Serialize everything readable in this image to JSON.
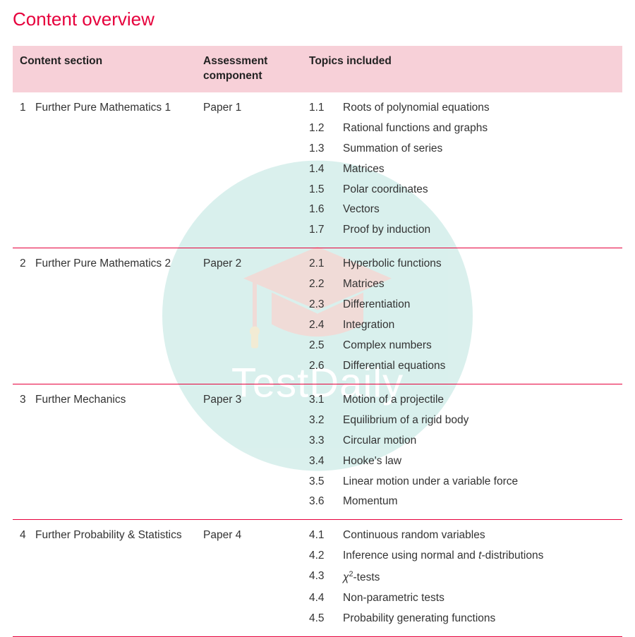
{
  "title": "Content overview",
  "watermark_text": "TestDaily",
  "colors": {
    "accent": "#e6003c",
    "header_bg": "#f7d0d8",
    "text": "#333333",
    "watermark_circle": "#7bcabf",
    "watermark_icon": "#e96b59",
    "watermark_text_color": "#ffffff"
  },
  "table": {
    "columns": [
      "Content section",
      "Assessment component",
      "Topics included"
    ],
    "sections": [
      {
        "num": "1",
        "name": "Further Pure Mathematics 1",
        "assessment": "Paper 1",
        "topics": [
          {
            "id": "1.1",
            "label": "Roots of polynomial equations"
          },
          {
            "id": "1.2",
            "label": "Rational functions and graphs"
          },
          {
            "id": "1.3",
            "label": "Summation of series"
          },
          {
            "id": "1.4",
            "label": "Matrices"
          },
          {
            "id": "1.5",
            "label": "Polar coordinates"
          },
          {
            "id": "1.6",
            "label": "Vectors"
          },
          {
            "id": "1.7",
            "label": "Proof by induction"
          }
        ]
      },
      {
        "num": "2",
        "name": "Further Pure Mathematics 2",
        "assessment": "Paper 2",
        "topics": [
          {
            "id": "2.1",
            "label": "Hyperbolic functions"
          },
          {
            "id": "2.2",
            "label": "Matrices"
          },
          {
            "id": "2.3",
            "label": "Differentiation"
          },
          {
            "id": "2.4",
            "label": "Integration"
          },
          {
            "id": "2.5",
            "label": "Complex numbers"
          },
          {
            "id": "2.6",
            "label": "Differential equations"
          }
        ]
      },
      {
        "num": "3",
        "name": "Further Mechanics",
        "assessment": "Paper 3",
        "topics": [
          {
            "id": "3.1",
            "label": "Motion of a projectile"
          },
          {
            "id": "3.2",
            "label": "Equilibrium of a rigid body"
          },
          {
            "id": "3.3",
            "label": "Circular motion"
          },
          {
            "id": "3.4",
            "label": "Hooke's law"
          },
          {
            "id": "3.5",
            "label": "Linear motion under a variable force"
          },
          {
            "id": "3.6",
            "label": "Momentum"
          }
        ]
      },
      {
        "num": "4",
        "name": "Further Probability & Statistics",
        "assessment": "Paper 4",
        "topics": [
          {
            "id": "4.1",
            "label": "Continuous random variables"
          },
          {
            "id": "4.2",
            "label_html": "Inference using normal and <span class='ital'>t</span>-distributions"
          },
          {
            "id": "4.3",
            "label_html": "<span class='ital'>χ</span><sup>2</sup>-tests"
          },
          {
            "id": "4.4",
            "label": "Non-parametric tests"
          },
          {
            "id": "4.5",
            "label": "Probability generating functions"
          }
        ]
      }
    ]
  }
}
